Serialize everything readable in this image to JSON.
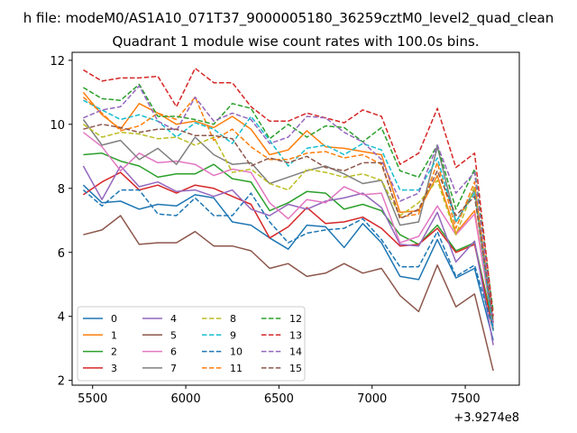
{
  "chart_data": {
    "type": "line",
    "suptitle": "h file: modeM0/AS1A10_071T37_9000005180_36259cztM0_level2_quad_clean",
    "title": "Quadrant 1 module wise count rates with 100.0s bins.",
    "xlabel": "",
    "ylabel": "",
    "x_offset_label": "+3.9274e8",
    "xlim": [
      5390,
      7790
    ],
    "ylim": [
      1.85,
      12.25
    ],
    "xticks": [
      5500,
      6000,
      6500,
      7000,
      7500
    ],
    "yticks": [
      2,
      4,
      6,
      8,
      10,
      12
    ],
    "grid": false,
    "legend_position": "lower-left",
    "legend_columns": 4,
    "x": [
      5450,
      5550,
      5650,
      5750,
      5850,
      5950,
      6050,
      6150,
      6250,
      6350,
      6450,
      6550,
      6650,
      6750,
      6850,
      6950,
      7050,
      7150,
      7250,
      7350,
      7450,
      7550,
      7650
    ],
    "series": [
      {
        "name": "0",
        "color": "#1f77b4",
        "style": "solid",
        "values": [
          8.1,
          7.55,
          7.6,
          7.35,
          7.5,
          7.45,
          7.8,
          7.7,
          6.95,
          6.85,
          6.45,
          6.1,
          6.85,
          6.8,
          6.15,
          6.9,
          6.3,
          5.25,
          5.15,
          6.4,
          5.2,
          5.5,
          3.25
        ]
      },
      {
        "name": "1",
        "color": "#ff7f0e",
        "style": "solid",
        "values": [
          11.0,
          10.3,
          9.85,
          10.65,
          10.35,
          10.0,
          10.1,
          9.9,
          10.25,
          9.85,
          9.05,
          9.2,
          9.8,
          9.3,
          9.25,
          9.15,
          9.05,
          7.25,
          7.3,
          8.4,
          6.6,
          7.3,
          3.6
        ]
      },
      {
        "name": "2",
        "color": "#2ca02c",
        "style": "solid",
        "values": [
          9.05,
          9.1,
          8.85,
          8.7,
          8.35,
          8.45,
          8.45,
          8.75,
          8.3,
          8.2,
          7.3,
          7.55,
          7.9,
          7.85,
          7.35,
          7.5,
          7.3,
          6.55,
          6.25,
          6.85,
          6.05,
          6.3,
          3.7
        ]
      },
      {
        "name": "3",
        "color": "#d62728",
        "style": "solid",
        "values": [
          7.8,
          8.2,
          8.5,
          7.95,
          8.1,
          7.85,
          8.1,
          8.0,
          7.75,
          7.5,
          6.45,
          6.8,
          7.4,
          6.9,
          6.95,
          7.1,
          6.75,
          6.2,
          6.25,
          6.75,
          6.0,
          6.25,
          3.55
        ]
      },
      {
        "name": "4",
        "color": "#9467bd",
        "style": "solid",
        "values": [
          8.7,
          7.65,
          8.7,
          8.05,
          8.2,
          7.9,
          7.95,
          7.75,
          7.95,
          7.35,
          7.15,
          7.5,
          7.35,
          7.6,
          7.7,
          7.85,
          7.4,
          6.25,
          6.2,
          7.25,
          5.7,
          6.35,
          3.1
        ]
      },
      {
        "name": "5",
        "color": "#8c564b",
        "style": "solid",
        "values": [
          6.55,
          6.7,
          7.15,
          6.25,
          6.3,
          6.3,
          6.65,
          6.2,
          6.2,
          6.05,
          5.5,
          5.65,
          5.25,
          5.35,
          5.65,
          5.35,
          5.5,
          4.65,
          4.15,
          5.6,
          4.3,
          4.7,
          2.3
        ]
      },
      {
        "name": "6",
        "color": "#e377c2",
        "style": "solid",
        "values": [
          9.75,
          9.3,
          8.55,
          9.1,
          8.8,
          8.85,
          8.75,
          8.4,
          8.6,
          8.5,
          7.55,
          7.05,
          7.65,
          7.55,
          8.05,
          7.8,
          7.85,
          6.3,
          6.5,
          7.45,
          6.55,
          7.2,
          3.7
        ]
      },
      {
        "name": "7",
        "color": "#7f7f7f",
        "style": "solid",
        "values": [
          10.15,
          9.35,
          9.5,
          8.9,
          9.25,
          8.75,
          9.6,
          9.05,
          8.75,
          8.8,
          8.15,
          8.35,
          8.55,
          8.7,
          8.45,
          8.15,
          8.25,
          6.85,
          6.95,
          9.3,
          6.95,
          7.95,
          3.55
        ]
      },
      {
        "name": "8",
        "color": "#bcbd22",
        "style": "dashed",
        "values": [
          10.0,
          9.6,
          9.75,
          9.7,
          9.55,
          9.6,
          9.35,
          9.6,
          8.5,
          8.6,
          8.15,
          7.95,
          8.6,
          8.5,
          8.35,
          8.45,
          8.25,
          7.15,
          7.55,
          8.25,
          6.55,
          8.05,
          3.8
        ]
      },
      {
        "name": "9",
        "color": "#17becf",
        "style": "dashed",
        "values": [
          10.75,
          10.45,
          10.15,
          10.3,
          10.1,
          9.6,
          10.05,
          9.85,
          9.4,
          10.25,
          9.5,
          8.7,
          9.25,
          9.35,
          9.05,
          9.4,
          9.2,
          7.95,
          7.95,
          8.95,
          6.95,
          7.85,
          3.55
        ]
      },
      {
        "name": "10",
        "color": "#1f77b4",
        "style": "dashed",
        "values": [
          7.95,
          7.45,
          7.95,
          7.95,
          7.2,
          7.15,
          7.7,
          7.15,
          7.15,
          7.85,
          6.95,
          6.3,
          6.6,
          6.7,
          6.75,
          7.05,
          6.4,
          5.55,
          5.55,
          6.65,
          5.25,
          5.6,
          3.6
        ]
      },
      {
        "name": "11",
        "color": "#ff7f0e",
        "style": "dashed",
        "values": [
          10.85,
          10.35,
          9.8,
          9.95,
          10.35,
          10.15,
          10.85,
          9.5,
          9.85,
          9.3,
          8.9,
          8.9,
          9.1,
          9.15,
          8.95,
          9.05,
          8.75,
          7.1,
          7.2,
          8.8,
          6.75,
          8.2,
          3.8
        ]
      },
      {
        "name": "12",
        "color": "#2ca02c",
        "style": "dashed",
        "values": [
          11.15,
          10.8,
          10.75,
          11.25,
          10.25,
          10.25,
          10.15,
          10.0,
          10.65,
          10.5,
          9.55,
          10.0,
          9.6,
          9.95,
          9.9,
          9.45,
          9.9,
          8.55,
          8.35,
          9.35,
          7.35,
          8.6,
          4.15
        ]
      },
      {
        "name": "13",
        "color": "#d62728",
        "style": "dashed",
        "values": [
          11.7,
          11.35,
          11.45,
          11.45,
          11.5,
          10.55,
          11.75,
          11.3,
          11.3,
          10.55,
          10.1,
          10.1,
          10.35,
          10.2,
          10.05,
          10.45,
          10.25,
          8.75,
          9.1,
          10.5,
          8.65,
          9.1,
          4.0
        ]
      },
      {
        "name": "14",
        "color": "#9467bd",
        "style": "dashed",
        "values": [
          10.2,
          10.45,
          10.55,
          11.2,
          10.1,
          9.8,
          10.85,
          10.1,
          10.35,
          10.15,
          9.4,
          9.6,
          10.25,
          10.2,
          9.75,
          9.45,
          8.9,
          7.6,
          7.85,
          9.35,
          7.85,
          8.5,
          3.8
        ]
      },
      {
        "name": "15",
        "color": "#8c564b",
        "style": "dashed",
        "values": [
          9.85,
          10.0,
          9.9,
          9.75,
          9.85,
          9.85,
          9.65,
          9.65,
          9.55,
          8.7,
          8.95,
          8.8,
          9.0,
          8.65,
          8.55,
          8.8,
          8.8,
          7.05,
          7.35,
          8.55,
          7.15,
          7.75,
          3.85
        ]
      }
    ]
  }
}
